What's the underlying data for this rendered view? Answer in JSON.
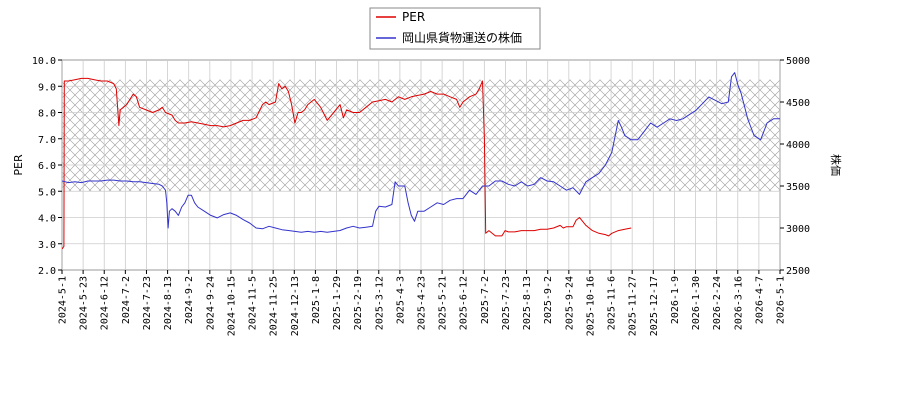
{
  "chart_data": {
    "type": "line",
    "legend": {
      "placement": "top-center",
      "entries": [
        {
          "label": "PER",
          "color": "#dd0000"
        },
        {
          "label": "岡山県貨物運送の株価",
          "color": "#3333cc"
        }
      ]
    },
    "y_left": {
      "label": "PER",
      "lim": [
        2.0,
        10.0
      ],
      "ticks": [
        "2.0",
        "3.0",
        "4.0",
        "5.0",
        "6.0",
        "7.0",
        "8.0",
        "9.0",
        "10.0"
      ]
    },
    "y_right": {
      "label": "株価",
      "lim": [
        2500,
        5000
      ],
      "ticks": [
        "2500",
        "3000",
        "3500",
        "4000",
        "4500",
        "5000"
      ]
    },
    "x_ticks": [
      "2024-5-1",
      "2024-5-23",
      "2024-6-12",
      "2024-7-2",
      "2024-7-23",
      "2024-8-13",
      "2024-9-2",
      "2024-9-24",
      "2024-10-15",
      "2024-11-5",
      "2024-11-25",
      "2024-12-13",
      "2025-1-8",
      "2025-1-29",
      "2025-2-19",
      "2025-3-12",
      "2025-4-3",
      "2025-4-23",
      "2025-5-21",
      "2025-6-12",
      "2025-7-2",
      "2025-7-23",
      "2025-8-13",
      "2025-9-2",
      "2025-9-24",
      "2025-10-16",
      "2025-11-6",
      "2025-11-27",
      "2025-12-17",
      "2026-1-9",
      "2026-1-30",
      "2026-2-24",
      "2026-3-16",
      "2026-4-7",
      "2026-5-1"
    ],
    "grid": true,
    "shaded_band_per": [
      5.0,
      9.25
    ],
    "series": [
      {
        "name": "PER",
        "axis": "left",
        "color": "#dd0000",
        "points": [
          [
            0,
            2.8
          ],
          [
            0.3,
            2.9
          ],
          [
            0.35,
            9.2
          ],
          [
            1,
            9.2
          ],
          [
            2,
            9.25
          ],
          [
            3,
            9.3
          ],
          [
            4,
            9.3
          ],
          [
            5,
            9.25
          ],
          [
            6,
            9.2
          ],
          [
            7,
            9.2
          ],
          [
            8,
            9.1
          ],
          [
            8.4,
            8.9
          ],
          [
            8.6,
            8.2
          ],
          [
            8.8,
            7.5
          ],
          [
            9,
            8.1
          ],
          [
            9.5,
            8.2
          ],
          [
            10,
            8.3
          ],
          [
            11,
            8.7
          ],
          [
            11.5,
            8.6
          ],
          [
            12,
            8.2
          ],
          [
            13,
            8.1
          ],
          [
            14,
            8.0
          ],
          [
            15,
            8.1
          ],
          [
            15.5,
            8.2
          ],
          [
            16,
            8.0
          ],
          [
            17,
            7.9
          ],
          [
            17.5,
            7.7
          ],
          [
            18,
            7.6
          ],
          [
            19,
            7.6
          ],
          [
            20,
            7.65
          ],
          [
            21,
            7.6
          ],
          [
            22,
            7.55
          ],
          [
            23,
            7.5
          ],
          [
            24,
            7.5
          ],
          [
            25,
            7.45
          ],
          [
            26,
            7.5
          ],
          [
            27,
            7.6
          ],
          [
            28,
            7.7
          ],
          [
            29,
            7.7
          ],
          [
            30,
            7.8
          ],
          [
            31,
            8.3
          ],
          [
            31.5,
            8.4
          ],
          [
            32,
            8.3
          ],
          [
            33,
            8.4
          ],
          [
            33.5,
            9.1
          ],
          [
            34,
            8.9
          ],
          [
            34.5,
            9.0
          ],
          [
            35,
            8.8
          ],
          [
            35.5,
            8.3
          ],
          [
            36,
            7.6
          ],
          [
            36.5,
            8.0
          ],
          [
            37,
            8.0
          ],
          [
            37.5,
            8.1
          ],
          [
            38,
            8.3
          ],
          [
            39,
            8.5
          ],
          [
            40,
            8.2
          ],
          [
            41,
            7.7
          ],
          [
            42,
            8.0
          ],
          [
            43,
            8.3
          ],
          [
            43.5,
            7.8
          ],
          [
            44,
            8.1
          ],
          [
            45,
            8.0
          ],
          [
            46,
            8.0
          ],
          [
            47,
            8.2
          ],
          [
            48,
            8.4
          ],
          [
            49,
            8.45
          ],
          [
            50,
            8.5
          ],
          [
            51,
            8.4
          ],
          [
            52,
            8.6
          ],
          [
            53,
            8.5
          ],
          [
            54,
            8.6
          ],
          [
            55,
            8.65
          ],
          [
            56,
            8.7
          ],
          [
            57,
            8.8
          ],
          [
            58,
            8.7
          ],
          [
            59,
            8.7
          ],
          [
            60,
            8.6
          ],
          [
            61,
            8.5
          ],
          [
            61.5,
            8.2
          ],
          [
            62,
            8.4
          ],
          [
            63,
            8.6
          ],
          [
            64,
            8.7
          ],
          [
            64.5,
            8.9
          ],
          [
            65,
            9.2
          ],
          [
            65.3,
            7.0
          ],
          [
            65.5,
            3.4
          ],
          [
            66,
            3.5
          ],
          [
            67,
            3.3
          ],
          [
            68,
            3.3
          ],
          [
            68.5,
            3.5
          ],
          [
            69,
            3.45
          ],
          [
            70,
            3.45
          ],
          [
            71,
            3.5
          ],
          [
            72,
            3.5
          ],
          [
            73,
            3.5
          ],
          [
            74,
            3.55
          ],
          [
            75,
            3.55
          ],
          [
            76,
            3.6
          ],
          [
            77,
            3.7
          ],
          [
            77.5,
            3.6
          ],
          [
            78,
            3.65
          ],
          [
            79,
            3.65
          ],
          [
            79.5,
            3.9
          ],
          [
            80,
            4.0
          ],
          [
            80.5,
            3.85
          ],
          [
            81,
            3.7
          ],
          [
            82,
            3.5
          ],
          [
            83,
            3.4
          ],
          [
            84,
            3.35
          ],
          [
            84.5,
            3.3
          ],
          [
            85,
            3.4
          ],
          [
            86,
            3.5
          ],
          [
            87,
            3.55
          ],
          [
            88,
            3.6
          ]
        ]
      },
      {
        "name": "岡山県貨物運送の株価",
        "axis": "right",
        "color": "#3333cc",
        "points": [
          [
            0,
            3560
          ],
          [
            1,
            3540
          ],
          [
            2,
            3550
          ],
          [
            3,
            3540
          ],
          [
            4,
            3560
          ],
          [
            5,
            3560
          ],
          [
            6,
            3560
          ],
          [
            7,
            3570
          ],
          [
            8,
            3570
          ],
          [
            9,
            3560
          ],
          [
            10,
            3560
          ],
          [
            11,
            3550
          ],
          [
            12,
            3550
          ],
          [
            13,
            3540
          ],
          [
            14,
            3530
          ],
          [
            15,
            3520
          ],
          [
            15.5,
            3500
          ],
          [
            16,
            3450
          ],
          [
            16.2,
            3300
          ],
          [
            16.4,
            3000
          ],
          [
            16.6,
            3200
          ],
          [
            17,
            3230
          ],
          [
            17.5,
            3200
          ],
          [
            18,
            3150
          ],
          [
            18.5,
            3250
          ],
          [
            19,
            3300
          ],
          [
            19.5,
            3390
          ],
          [
            20,
            3390
          ],
          [
            20.5,
            3300
          ],
          [
            21,
            3250
          ],
          [
            22,
            3200
          ],
          [
            23,
            3150
          ],
          [
            24,
            3120
          ],
          [
            25,
            3160
          ],
          [
            26,
            3180
          ],
          [
            27,
            3150
          ],
          [
            28,
            3100
          ],
          [
            29,
            3060
          ],
          [
            30,
            3000
          ],
          [
            31,
            2990
          ],
          [
            32,
            3020
          ],
          [
            33,
            3000
          ],
          [
            34,
            2980
          ],
          [
            35,
            2970
          ],
          [
            36,
            2960
          ],
          [
            37,
            2950
          ],
          [
            38,
            2960
          ],
          [
            39,
            2950
          ],
          [
            40,
            2960
          ],
          [
            41,
            2950
          ],
          [
            42,
            2960
          ],
          [
            43,
            2970
          ],
          [
            44,
            3000
          ],
          [
            45,
            3020
          ],
          [
            46,
            3000
          ],
          [
            47,
            3010
          ],
          [
            48,
            3020
          ],
          [
            48.5,
            3200
          ],
          [
            49,
            3260
          ],
          [
            50,
            3250
          ],
          [
            51,
            3280
          ],
          [
            51.5,
            3550
          ],
          [
            52,
            3500
          ],
          [
            53,
            3500
          ],
          [
            53.5,
            3300
          ],
          [
            54,
            3150
          ],
          [
            54.5,
            3080
          ],
          [
            55,
            3200
          ],
          [
            56,
            3200
          ],
          [
            57,
            3250
          ],
          [
            58,
            3300
          ],
          [
            59,
            3280
          ],
          [
            60,
            3330
          ],
          [
            61,
            3350
          ],
          [
            62,
            3350
          ],
          [
            63,
            3450
          ],
          [
            64,
            3400
          ],
          [
            65,
            3500
          ],
          [
            66,
            3500
          ],
          [
            67,
            3560
          ],
          [
            68,
            3560
          ],
          [
            69,
            3520
          ],
          [
            70,
            3500
          ],
          [
            71,
            3550
          ],
          [
            72,
            3500
          ],
          [
            73,
            3520
          ],
          [
            74,
            3600
          ],
          [
            75,
            3560
          ],
          [
            76,
            3550
          ],
          [
            77,
            3500
          ],
          [
            78,
            3450
          ],
          [
            79,
            3480
          ],
          [
            80,
            3400
          ],
          [
            81,
            3550
          ],
          [
            82,
            3600
          ],
          [
            83,
            3650
          ],
          [
            84,
            3750
          ],
          [
            85,
            3900
          ],
          [
            86,
            4280
          ],
          [
            86.5,
            4200
          ],
          [
            87,
            4100
          ],
          [
            88,
            4050
          ],
          [
            89,
            4050
          ],
          [
            90,
            4150
          ],
          [
            91,
            4250
          ],
          [
            92,
            4200
          ],
          [
            93,
            4250
          ],
          [
            94,
            4300
          ],
          [
            95,
            4280
          ],
          [
            96,
            4300
          ],
          [
            97,
            4350
          ],
          [
            98,
            4400
          ],
          [
            99,
            4480
          ],
          [
            100,
            4560
          ],
          [
            101,
            4520
          ],
          [
            102,
            4480
          ],
          [
            103,
            4500
          ],
          [
            103.5,
            4800
          ],
          [
            104,
            4850
          ],
          [
            104.5,
            4700
          ],
          [
            105,
            4600
          ],
          [
            106,
            4300
          ],
          [
            107,
            4100
          ],
          [
            108,
            4050
          ],
          [
            109,
            4250
          ],
          [
            110,
            4300
          ],
          [
            111,
            4300
          ]
        ]
      }
    ]
  }
}
